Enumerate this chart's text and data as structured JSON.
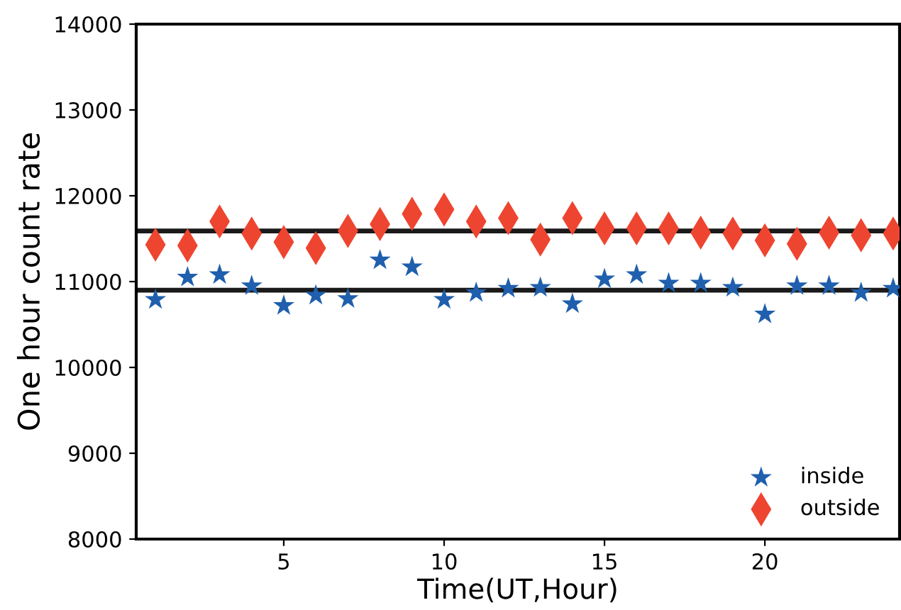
{
  "chart_data": {
    "type": "scatter",
    "xlabel": "Time(UT,Hour)",
    "ylabel": "One hour count rate",
    "x": [
      1,
      2,
      3,
      4,
      5,
      6,
      7,
      8,
      9,
      10,
      11,
      12,
      13,
      14,
      15,
      16,
      17,
      18,
      19,
      20,
      21,
      22,
      23,
      24
    ],
    "series": [
      {
        "name": "inside",
        "color": "#1f5fad",
        "marker": "star",
        "values": [
          10790,
          11050,
          11080,
          10950,
          10720,
          10840,
          10800,
          11250,
          11170,
          10790,
          10870,
          10920,
          10930,
          10740,
          11030,
          11080,
          10980,
          10980,
          10930,
          10620,
          10950,
          10950,
          10870,
          10920
        ]
      },
      {
        "name": "outside",
        "color": "#ee4530",
        "marker": "diamond",
        "values": [
          11430,
          11420,
          11700,
          11560,
          11460,
          11390,
          11590,
          11670,
          11790,
          11840,
          11700,
          11740,
          11490,
          11740,
          11620,
          11620,
          11620,
          11570,
          11560,
          11480,
          11440,
          11570,
          11540,
          11560
        ]
      }
    ],
    "ref_lines": [
      {
        "axis": "y",
        "value": 11590,
        "color": "#1a1a1a"
      },
      {
        "axis": "y",
        "value": 10900,
        "color": "#1a1a1a"
      }
    ],
    "xlim": [
      0.4,
      24.2
    ],
    "xticks": [
      5,
      10,
      15,
      20
    ],
    "ylim": [
      8000,
      14000
    ],
    "yticks": [
      8000,
      9000,
      10000,
      11000,
      12000,
      13000,
      14000
    ],
    "grid": false,
    "legend": "bottom right"
  }
}
